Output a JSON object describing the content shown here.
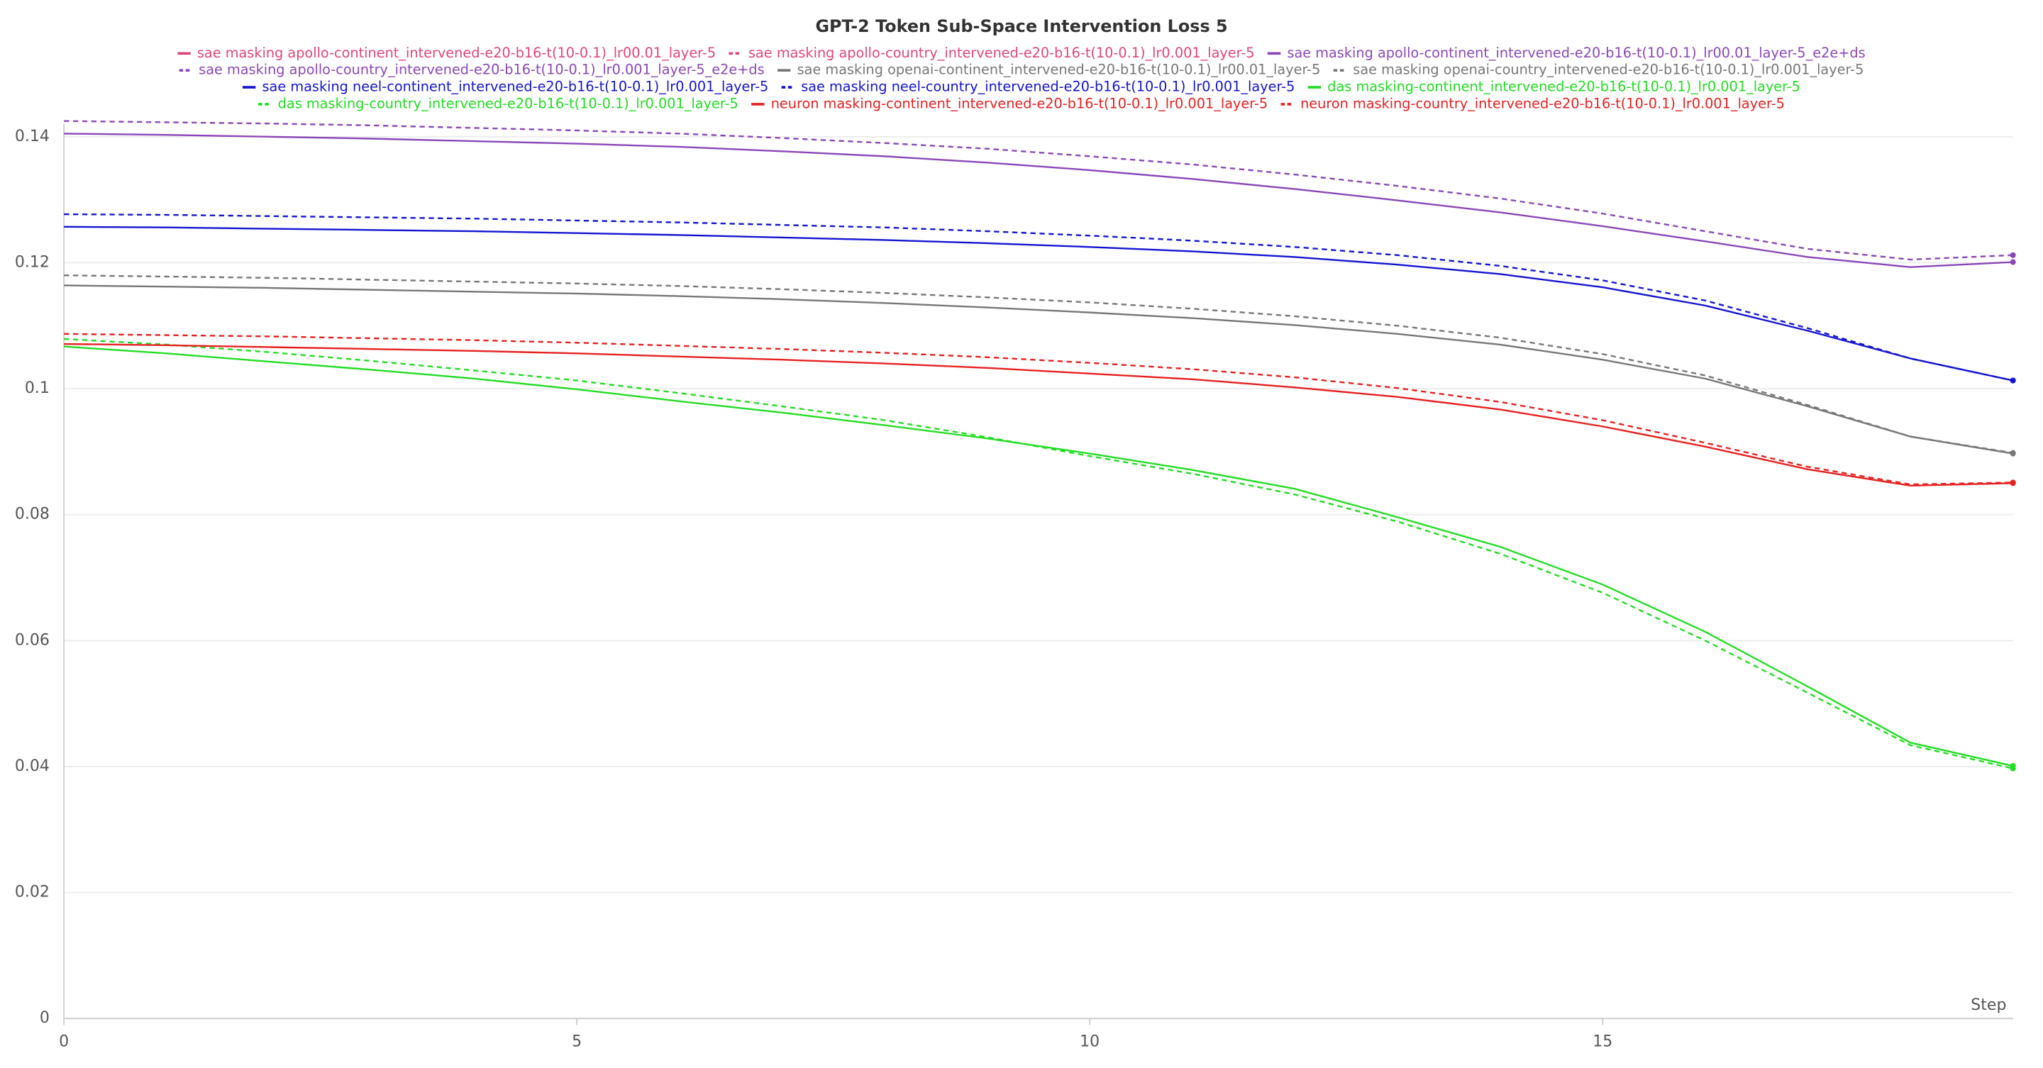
{
  "chart_data": {
    "type": "line",
    "title": "GPT-2 Token Sub-Space Intervention Loss 5",
    "x_label": "Step",
    "x": [
      0,
      1,
      2,
      3,
      4,
      5,
      6,
      7,
      8,
      9,
      10,
      11,
      12,
      13,
      14,
      15,
      16,
      17,
      18,
      19
    ],
    "xlim": [
      0,
      19
    ],
    "xticks": [
      0,
      5,
      10,
      15
    ],
    "ylim": [
      0,
      0.14
    ],
    "yticks": [
      0,
      0.02,
      0.04,
      0.06,
      0.08,
      0.1,
      0.12,
      0.14
    ],
    "grid": true,
    "legend": "top",
    "series": [
      {
        "name": "sae masking apollo-continent_intervened-e20-b16-t(10-0.1)_lr00.01_layer-5",
        "color": "#e0457b",
        "dashed": false,
        "values": [
          null,
          null,
          null,
          null,
          null,
          null,
          null,
          null,
          null,
          null,
          null,
          null,
          null,
          null,
          null,
          null,
          null,
          null,
          null,
          null
        ]
      },
      {
        "name": "sae masking apollo-country_intervened-e20-b16-t(10-0.1)_lr0.001_layer-5",
        "color": "#e0457b",
        "dashed": true,
        "values": [
          null,
          null,
          null,
          null,
          null,
          null,
          null,
          null,
          null,
          null,
          null,
          null,
          null,
          null,
          null,
          null,
          null,
          null,
          null,
          null
        ]
      },
      {
        "name": "sae masking apollo-continent_intervened-e20-b16-t(10-0.1)_lr00.01_layer-5_e2e+ds",
        "color": "#8a47b8",
        "dashed": false,
        "values": [
          0.1405,
          0.1403,
          0.14,
          0.1397,
          0.1393,
          0.1389,
          0.1384,
          0.1377,
          0.1369,
          0.1359,
          0.1347,
          0.1333,
          0.1317,
          0.1299,
          0.128,
          0.1258,
          0.1234,
          0.1209,
          0.1193,
          0.1201
        ]
      },
      {
        "name": "sae masking apollo-country_intervened-e20-b16-t(10-0.1)_lr0.001_layer-5_e2e+ds",
        "color": "#8a47b8",
        "dashed": true,
        "values": [
          0.1425,
          0.1423,
          0.1421,
          0.1418,
          0.1414,
          0.141,
          0.1405,
          0.1398,
          0.139,
          0.1381,
          0.1369,
          0.1356,
          0.134,
          0.1322,
          0.1302,
          0.1278,
          0.125,
          0.1222,
          0.1205,
          0.1212
        ]
      },
      {
        "name": "sae masking openai-continent_intervened-e20-b16-t(10-0.1)_lr00.01_layer-5",
        "color": "#777777",
        "dashed": false,
        "values": [
          0.1164,
          0.1162,
          0.116,
          0.1157,
          0.1154,
          0.1151,
          0.1147,
          0.1142,
          0.1136,
          0.1129,
          0.1121,
          0.1112,
          0.1101,
          0.1087,
          0.107,
          0.1046,
          0.1016,
          0.0972,
          0.0924,
          0.0897
        ]
      },
      {
        "name": "sae masking openai-country_intervened-e20-b16-t(10-0.1)_lr0.001_layer-5",
        "color": "#777777",
        "dashed": true,
        "values": [
          0.118,
          0.1178,
          0.1176,
          0.1173,
          0.117,
          0.1167,
          0.1163,
          0.1158,
          0.1152,
          0.1145,
          0.1137,
          0.1127,
          0.1115,
          0.11,
          0.1081,
          0.1055,
          0.1021,
          0.0974,
          0.0924,
          0.0898
        ]
      },
      {
        "name": "sae masking neel-continent_intervened-e20-b16-t(10-0.1)_lr0.001_layer-5",
        "color": "#1414d2",
        "dashed": false,
        "values": [
          0.1257,
          0.1256,
          0.1254,
          0.1252,
          0.125,
          0.1247,
          0.1244,
          0.124,
          0.1236,
          0.1231,
          0.1225,
          0.1218,
          0.1209,
          0.1197,
          0.1182,
          0.1161,
          0.1132,
          0.1092,
          0.1048,
          0.1013
        ]
      },
      {
        "name": "sae masking neel-country_intervened-e20-b16-t(10-0.1)_lr0.001_layer-5",
        "color": "#1414d2",
        "dashed": true,
        "values": [
          0.1277,
          0.1276,
          0.1274,
          0.1272,
          0.127,
          0.1267,
          0.1264,
          0.126,
          0.1256,
          0.125,
          0.1243,
          0.1235,
          0.1225,
          0.1212,
          0.1195,
          0.1172,
          0.114,
          0.1096,
          0.1048,
          0.1013
        ]
      },
      {
        "name": "das masking-continent_intervened-e20-b16-t(10-0.1)_lr0.001_layer-5",
        "color": "#22dd22",
        "dashed": false,
        "values": [
          0.1067,
          0.1056,
          0.1043,
          0.103,
          0.1016,
          0.0999,
          0.098,
          0.0962,
          0.0942,
          0.0921,
          0.0897,
          0.0871,
          0.0841,
          0.0796,
          0.0749,
          0.0689,
          0.0614,
          0.0527,
          0.0438,
          0.0401
        ]
      },
      {
        "name": "das masking-country_intervened-e20-b16-t(10-0.1)_lr0.001_layer-5",
        "color": "#22dd22",
        "dashed": true,
        "values": [
          0.1079,
          0.107,
          0.1058,
          0.1044,
          0.1029,
          0.1013,
          0.0993,
          0.0972,
          0.095,
          0.0923,
          0.0893,
          0.0865,
          0.0832,
          0.0789,
          0.0738,
          0.0676,
          0.06,
          0.0517,
          0.0434,
          0.0397
        ]
      },
      {
        "name": "neuron masking-continent_intervened-e20-b16-t(10-0.1)_lr0.001_layer-5",
        "color": "#e82020",
        "dashed": false,
        "values": [
          0.1071,
          0.1069,
          0.1066,
          0.1063,
          0.106,
          0.1056,
          0.1051,
          0.1046,
          0.104,
          0.1033,
          0.1024,
          0.1015,
          0.1002,
          0.0987,
          0.0967,
          0.094,
          0.0908,
          0.0872,
          0.0846,
          0.085
        ]
      },
      {
        "name": "neuron masking-country_intervened-e20-b16-t(10-0.1)_lr0.001_layer-5",
        "color": "#e82020",
        "dashed": true,
        "values": [
          0.1087,
          0.1085,
          0.1083,
          0.108,
          0.1077,
          0.1073,
          0.1068,
          0.1063,
          0.1057,
          0.105,
          0.1041,
          0.1031,
          0.1018,
          0.1001,
          0.0979,
          0.095,
          0.0914,
          0.0876,
          0.0848,
          0.0851
        ]
      }
    ]
  }
}
